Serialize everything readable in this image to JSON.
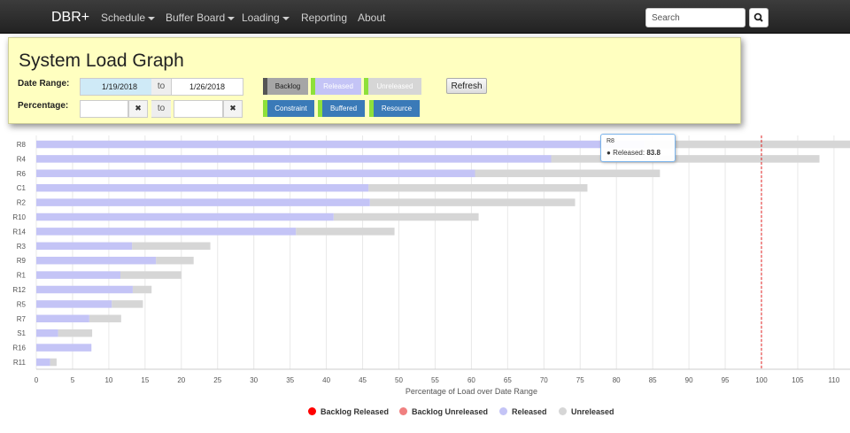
{
  "navbar": {
    "brand": "DBR+",
    "items": [
      {
        "label": "Schedule",
        "dropdown": true
      },
      {
        "label": "Buffer Board",
        "dropdown": true
      },
      {
        "label": "Loading",
        "dropdown": true
      },
      {
        "label": "Reporting",
        "dropdown": false
      },
      {
        "label": "About",
        "dropdown": false
      }
    ],
    "search": {
      "placeholder": "Search",
      "value": ""
    }
  },
  "panel": {
    "title": "System Load Graph",
    "date_range_label": "Date Range:",
    "date_from": "1/19/2018",
    "date_to": "1/26/2018",
    "to_label": "to",
    "percentage_label": "Percentage:",
    "pct_from": "",
    "pct_to": "",
    "clear_glyph": "✖",
    "toggles": [
      "Backlog",
      "Released",
      "Unreleased",
      "Constraint",
      "Buffered",
      "Resource"
    ],
    "refresh_label": "Refresh"
  },
  "colors": {
    "released": "#c4c4f6",
    "unreleased": "#d6d6d6",
    "backlog_released": "#ff0000",
    "backlog_unreleased": "#f08080",
    "limit_line": "#e02020",
    "toggle_accent": "#8ee03a",
    "button_blue": "#3a7ab8"
  },
  "chart_data": {
    "type": "bar",
    "orientation": "horizontal",
    "stacked": true,
    "categories": [
      "R8",
      "R4",
      "R6",
      "C1",
      "R2",
      "R10",
      "R14",
      "R3",
      "R9",
      "R1",
      "R12",
      "R5",
      "R7",
      "S1",
      "R16",
      "R11"
    ],
    "series": [
      {
        "name": "Backlog Released",
        "values": [
          0,
          0,
          0,
          0,
          0,
          0,
          0,
          0,
          0,
          0,
          0,
          0,
          0,
          0,
          0,
          0
        ]
      },
      {
        "name": "Backlog Unreleased",
        "values": [
          0,
          0,
          0,
          0,
          0,
          0,
          0,
          0,
          0,
          0,
          0,
          0,
          0,
          0,
          0,
          0
        ]
      },
      {
        "name": "Released",
        "values": [
          83.8,
          71.0,
          60.5,
          45.8,
          46.0,
          41.0,
          35.8,
          13.2,
          16.5,
          11.6,
          13.3,
          10.4,
          7.3,
          3.0,
          7.6,
          1.9
        ]
      },
      {
        "name": "Unreleased",
        "values": [
          30.0,
          37.0,
          25.5,
          30.2,
          28.3,
          20.0,
          13.6,
          10.8,
          5.2,
          8.4,
          2.6,
          4.3,
          4.4,
          4.7,
          0,
          0.9
        ]
      }
    ],
    "xlabel": "Percentage of Load over Date Range",
    "xlim": [
      0,
      112
    ],
    "xticks": [
      0,
      5,
      10,
      15,
      20,
      25,
      30,
      35,
      40,
      45,
      50,
      55,
      60,
      65,
      70,
      75,
      80,
      85,
      90,
      95,
      100,
      105,
      110
    ],
    "reference_line": 100,
    "grid": true,
    "legend_position": "bottom-center",
    "tooltip": {
      "category": "R8",
      "series": "Released",
      "label": "Released:",
      "value": "83.8"
    }
  }
}
